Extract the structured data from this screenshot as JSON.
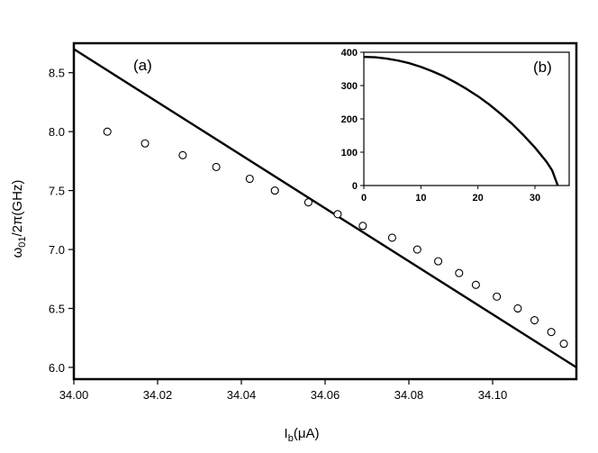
{
  "chart_data": [
    {
      "type": "scatter",
      "panel_label": "(a)",
      "xlabel": {
        "main": "I",
        "sub": "b",
        "unit": "(μA)"
      },
      "ylabel": {
        "main": "ω",
        "sub": "01",
        "unit": "/2π(GHz)"
      },
      "xlim": [
        34.0,
        34.12
      ],
      "ylim": [
        5.9,
        8.75
      ],
      "x_ticks": [
        "34.00",
        "34.02",
        "34.04",
        "34.06",
        "34.08",
        "34.10"
      ],
      "x_tick_values": [
        34.0,
        34.02,
        34.04,
        34.06,
        34.08,
        34.1
      ],
      "y_ticks": [
        "6.0",
        "6.5",
        "7.0",
        "7.5",
        "8.0",
        "8.5"
      ],
      "y_tick_values": [
        6.0,
        6.5,
        7.0,
        7.5,
        8.0,
        8.5
      ],
      "grid": false,
      "series": [
        {
          "kind": "scatter",
          "marker": "open-circle",
          "x": [
            34.008,
            34.017,
            34.026,
            34.034,
            34.042,
            34.048,
            34.056,
            34.063,
            34.069,
            34.076,
            34.082,
            34.087,
            34.092,
            34.096,
            34.101,
            34.106,
            34.11,
            34.114,
            34.117
          ],
          "y": [
            8.0,
            7.9,
            7.8,
            7.7,
            7.6,
            7.5,
            7.4,
            7.3,
            7.2,
            7.1,
            7.0,
            6.9,
            6.8,
            6.7,
            6.6,
            6.5,
            6.4,
            6.3,
            6.2
          ]
        },
        {
          "kind": "line",
          "x": [
            34.0,
            34.12
          ],
          "y": [
            8.7,
            6.0
          ]
        }
      ]
    },
    {
      "type": "line",
      "panel_label": "(b)",
      "xlim": [
        0,
        36
      ],
      "ylim": [
        0,
        400
      ],
      "x_ticks": [
        "0",
        "10",
        "20",
        "30"
      ],
      "x_tick_values": [
        0,
        10,
        20,
        30
      ],
      "y_ticks": [
        "0",
        "100",
        "200",
        "300",
        "400"
      ],
      "y_tick_values": [
        0,
        100,
        200,
        300,
        400
      ],
      "grid": false,
      "series": [
        {
          "x": [
            0,
            2,
            4,
            6,
            8,
            10,
            12,
            14,
            16,
            18,
            20,
            22,
            24,
            26,
            28,
            30,
            32,
            33,
            34.0
          ],
          "y": [
            386,
            385,
            381,
            375,
            367,
            356,
            343,
            328,
            310,
            290,
            268,
            243,
            215,
            185,
            151,
            114,
            72,
            46,
            0
          ]
        }
      ]
    }
  ]
}
